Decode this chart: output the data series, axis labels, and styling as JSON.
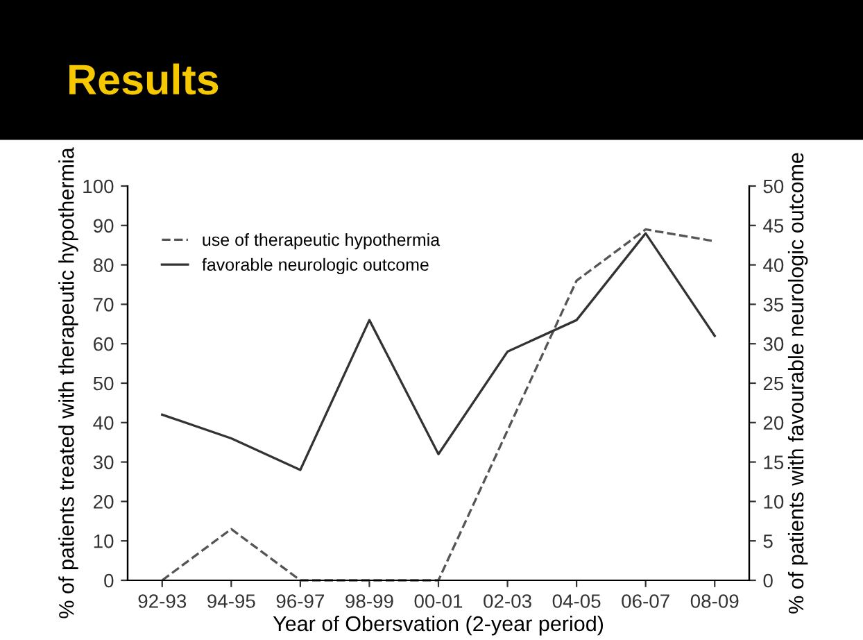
{
  "chart_data": {
    "type": "line",
    "title": "Results",
    "categories": [
      "92-93",
      "94-95",
      "96-97",
      "98-99",
      "00-01",
      "02-03",
      "04-05",
      "06-07",
      "08-09"
    ],
    "series": [
      {
        "name": "use of therapeutic hypothermia",
        "color": "#555555",
        "line_style": "dashed",
        "values": [
          0,
          13,
          0,
          0,
          0,
          38,
          76,
          89,
          86
        ]
      },
      {
        "name": "favorable neurologic outcome",
        "color": "#333333",
        "line_style": "solid",
        "axis": "y2",
        "values": [
          21,
          18,
          14,
          33,
          16,
          29,
          33,
          44,
          31
        ]
      }
    ],
    "xlabel": "Year of Obersvation (2-year period)",
    "ylabel": "% of patients treated with therapeutic hypothermia",
    "y2label": "% of patients with favourable neurologic outcome",
    "ylim": [
      0,
      100
    ],
    "yticks": [
      0,
      10,
      20,
      30,
      40,
      50,
      60,
      70,
      80,
      90,
      100
    ],
    "y2lim": [
      0,
      50
    ],
    "y2ticks": [
      0,
      5,
      10,
      15,
      20,
      25,
      30,
      35,
      40,
      45,
      50
    ],
    "legend": "top left",
    "grid": false
  }
}
